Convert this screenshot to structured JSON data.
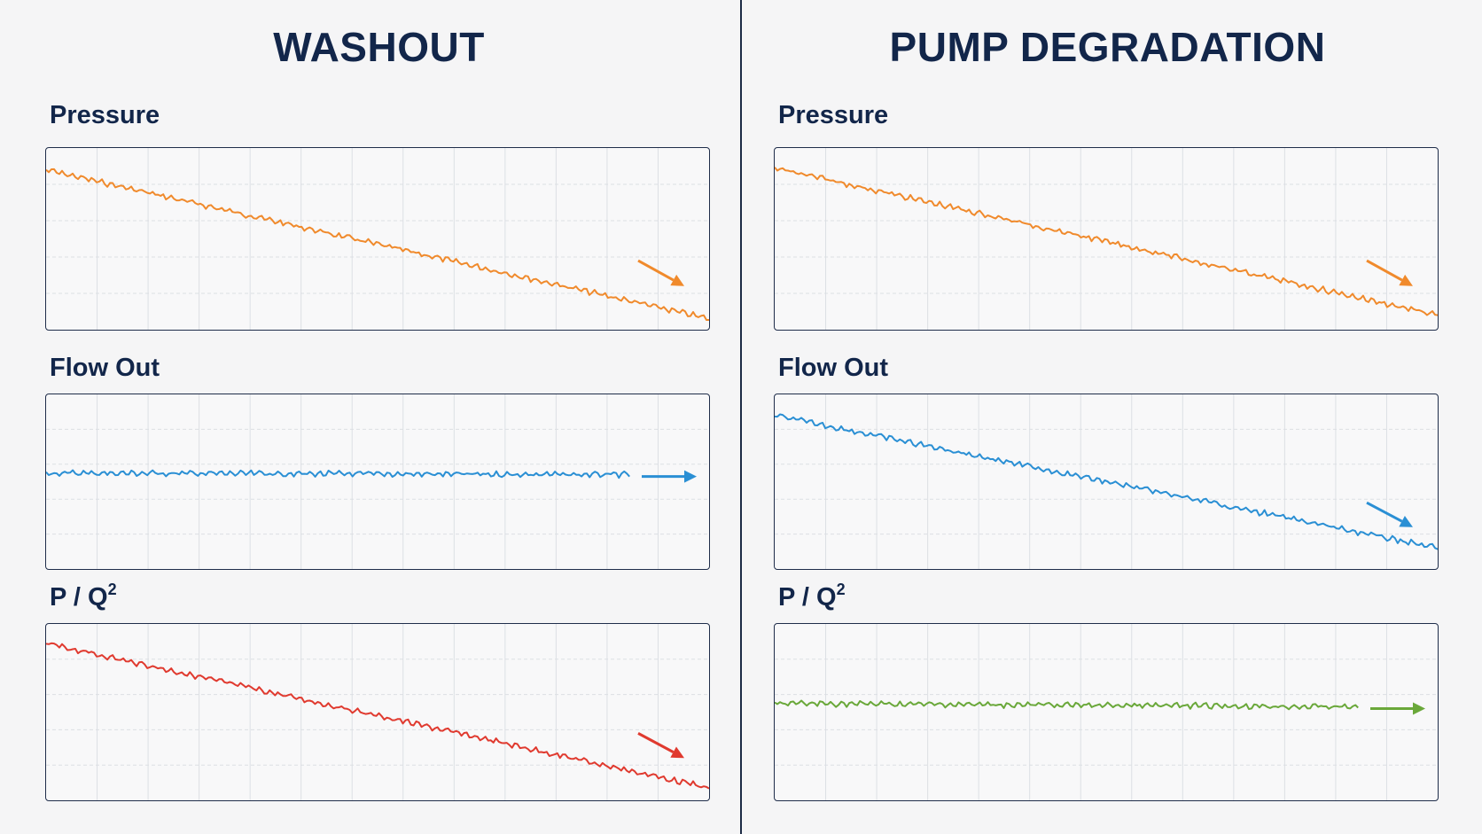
{
  "panels": [
    {
      "title": "WASHOUT",
      "charts": [
        {
          "label": "Pressure",
          "color": "#f08a2c",
          "start": 0.12,
          "end": 0.94,
          "x_end": 1.0,
          "arrow": "down"
        },
        {
          "label": "Flow Out",
          "color": "#2a8fd4",
          "start": 0.45,
          "end": 0.46,
          "x_end": 0.88,
          "arrow": "flat"
        },
        {
          "label_main": "P / Q",
          "label_sup": "2",
          "color": "#e03a2f",
          "start": 0.11,
          "end": 0.93,
          "x_end": 1.0,
          "arrow": "down"
        }
      ]
    },
    {
      "title": "PUMP DEGRADATION",
      "charts": [
        {
          "label": "Pressure",
          "color": "#f08a2c",
          "start": 0.11,
          "end": 0.92,
          "x_end": 1.0,
          "arrow": "down"
        },
        {
          "label": "Flow Out",
          "color": "#2a8fd4",
          "start": 0.12,
          "end": 0.88,
          "x_end": 1.0,
          "arrow": "down"
        },
        {
          "label_main": "P / Q",
          "label_sup": "2",
          "color": "#6aa83a",
          "start": 0.45,
          "end": 0.47,
          "x_end": 0.88,
          "arrow": "flat"
        }
      ]
    }
  ],
  "chart_data": [
    {
      "type": "line",
      "title": "WASHOUT — Pressure",
      "trend": "decreasing",
      "series": [
        {
          "values": [
            0.12,
            0.94
          ]
        }
      ]
    },
    {
      "type": "line",
      "title": "WASHOUT — Flow Out",
      "trend": "flat",
      "series": [
        {
          "values": [
            0.45,
            0.46
          ]
        }
      ]
    },
    {
      "type": "line",
      "title": "WASHOUT — P / Q2",
      "trend": "decreasing",
      "series": [
        {
          "values": [
            0.11,
            0.93
          ]
        }
      ]
    },
    {
      "type": "line",
      "title": "PUMP DEGRADATION — Pressure",
      "trend": "decreasing",
      "series": [
        {
          "values": [
            0.11,
            0.92
          ]
        }
      ]
    },
    {
      "type": "line",
      "title": "PUMP DEGRADATION — Flow Out",
      "trend": "decreasing",
      "series": [
        {
          "values": [
            0.12,
            0.88
          ]
        }
      ]
    },
    {
      "type": "line",
      "title": "PUMP DEGRADATION — P / Q2",
      "trend": "flat",
      "series": [
        {
          "values": [
            0.45,
            0.47
          ]
        }
      ]
    }
  ]
}
